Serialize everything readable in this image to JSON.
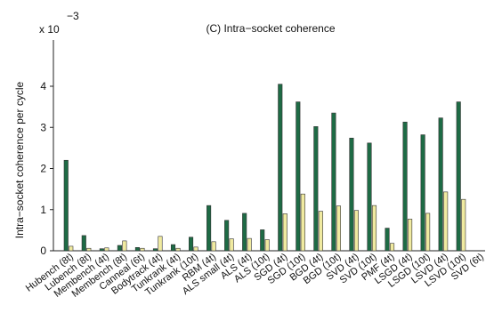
{
  "chart_data": {
    "type": "bar",
    "title": "(C) Intra−socket coherence",
    "ylabel": "Intra−socket coherence per cycle",
    "xlabel": "",
    "y_multiplier_label": "x 10",
    "y_multiplier_exponent": "−3",
    "ylim": [
      0,
      4.2
    ],
    "yticks": [
      0,
      1,
      2,
      3,
      4
    ],
    "grid": false,
    "legend": "none",
    "categories": [
      "Hubench (8t)",
      "Lubench (8t)",
      "Membench (4t)",
      "Membench (8t)",
      "Canneal (6t)",
      "Bodytrack (4t)",
      "Tunkrank (4t)",
      "Tunkrank (10t)",
      "RBM (4t)",
      "ALS small (4t)",
      "ALS (4t)",
      "ALS (10t)",
      "SGD (4t)",
      "SGD (10t)",
      "BGD (4t)",
      "BGD (10t)",
      "SVD (4t)",
      "SVD (10t)",
      "PMF (4t)",
      "LSGD (4t)",
      "LSGD (10t)",
      "LSVD (4t)",
      "LSVD (10t)",
      "SVD (6t)"
    ],
    "series": [
      {
        "color": "#1e6b45",
        "values": [
          2.2,
          0.37,
          0.05,
          0.13,
          0.08,
          0.05,
          0.15,
          0.33,
          1.1,
          0.74,
          0.91,
          0.51,
          4.05,
          3.62,
          3.02,
          3.35,
          2.74,
          2.62,
          0.55,
          3.13,
          2.82,
          3.23,
          3.62,
          0
        ]
      },
      {
        "color": "#f0eaa0",
        "values": [
          0.11,
          0.06,
          0.07,
          0.24,
          0.06,
          0.35,
          0.06,
          0.09,
          0.22,
          0.29,
          0.3,
          0.27,
          0.9,
          1.38,
          0.96,
          1.09,
          0.98,
          1.1,
          0.18,
          0.77,
          0.91,
          1.43,
          1.25,
          0
        ]
      }
    ]
  }
}
